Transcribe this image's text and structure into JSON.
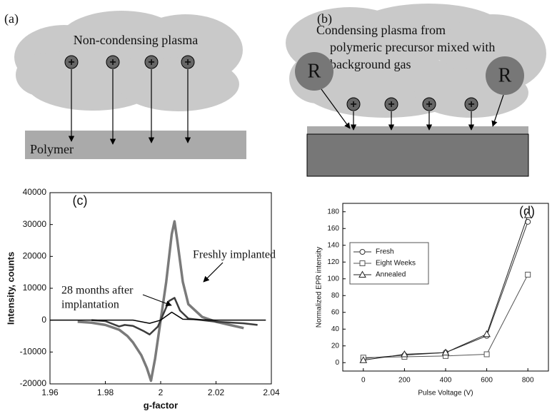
{
  "diagrams": {
    "a": {
      "label": "(a)",
      "plasma": "Non-condensing plasma",
      "ion": "+",
      "substrate": "Polymer"
    },
    "b": {
      "label": "(b)",
      "plasma_lines": [
        "Condensing plasma from",
        "polymeric precursor mixed with",
        "background gas"
      ],
      "ion": "+",
      "radical": "R"
    }
  },
  "chart_data": [
    {
      "type": "line",
      "panel_label": "(c)",
      "xlabel": "g-factor",
      "ylabel": "Intensity, counts",
      "xlim": [
        1.96,
        2.04
      ],
      "ylim": [
        -20000,
        40000
      ],
      "xticks": [
        1.96,
        1.98,
        2,
        2.02,
        2.04
      ],
      "yticks": [
        -20000,
        -10000,
        0,
        10000,
        20000,
        30000,
        40000
      ],
      "series": [
        {
          "color": "#7a7a7a",
          "width": 3.5,
          "x": [
            1.97,
            1.975,
            1.98,
            1.985,
            1.988,
            1.99,
            1.993,
            1.995,
            1.9965,
            1.998,
            2.0,
            2.002,
            2.004,
            2.005,
            2.006,
            2.008,
            2.01,
            2.015,
            2.02,
            2.025,
            2.03
          ],
          "values": [
            -500,
            -800,
            -1500,
            -3000,
            -5000,
            -7000,
            -11000,
            -15000,
            -19000,
            -12000,
            0,
            12000,
            27000,
            31000,
            25000,
            12000,
            5000,
            1000,
            -500,
            -1500,
            -2500
          ]
        },
        {
          "color": "#3c3c3c",
          "width": 2.5,
          "x": [
            1.975,
            1.98,
            1.985,
            1.987,
            1.99,
            1.994,
            1.996,
            1.999,
            2.001,
            2.003,
            2.005,
            2.007,
            2.01,
            2.02,
            2.03,
            2.035
          ],
          "values": [
            0,
            -300,
            -2000,
            -1500,
            -1800,
            -3500,
            -4500,
            -2000,
            2000,
            6000,
            7000,
            3000,
            500,
            -500,
            -1000,
            -1500
          ]
        },
        {
          "color": "#000000",
          "width": 1.5,
          "x": [
            1.96,
            1.99,
            1.996,
            2.0,
            2.004,
            2.008,
            2.02,
            2.038
          ],
          "values": [
            0,
            0,
            -1000,
            0,
            2500,
            300,
            0,
            0
          ]
        }
      ],
      "annotations": [
        {
          "lines": [
            "Freshly implanted"
          ]
        },
        {
          "lines": [
            "28 months after",
            "implantation"
          ]
        }
      ]
    },
    {
      "type": "line",
      "panel_label": "(d)",
      "xlabel": "Pulse Voltage (V)",
      "ylabel": "Normalized EPR intensity",
      "xlim": [
        -100,
        900
      ],
      "ylim": [
        -10,
        190
      ],
      "xticks": [
        0,
        200,
        400,
        600,
        800
      ],
      "yticks": [
        0,
        20,
        40,
        60,
        80,
        100,
        120,
        140,
        160,
        180
      ],
      "legend": "upper left",
      "x": [
        0,
        200,
        400,
        600,
        800
      ],
      "series": [
        {
          "name": "Fresh",
          "marker": "circle",
          "color": "#333333",
          "values": [
            5,
            9,
            12,
            32,
            168
          ]
        },
        {
          "name": "Eight Weeks",
          "marker": "square",
          "color": "#555555",
          "values": [
            6,
            7,
            8,
            10,
            105
          ]
        },
        {
          "name": "Annealed",
          "marker": "triangle",
          "color": "#222222",
          "values": [
            3,
            10,
            12,
            34,
            176
          ]
        }
      ]
    }
  ]
}
